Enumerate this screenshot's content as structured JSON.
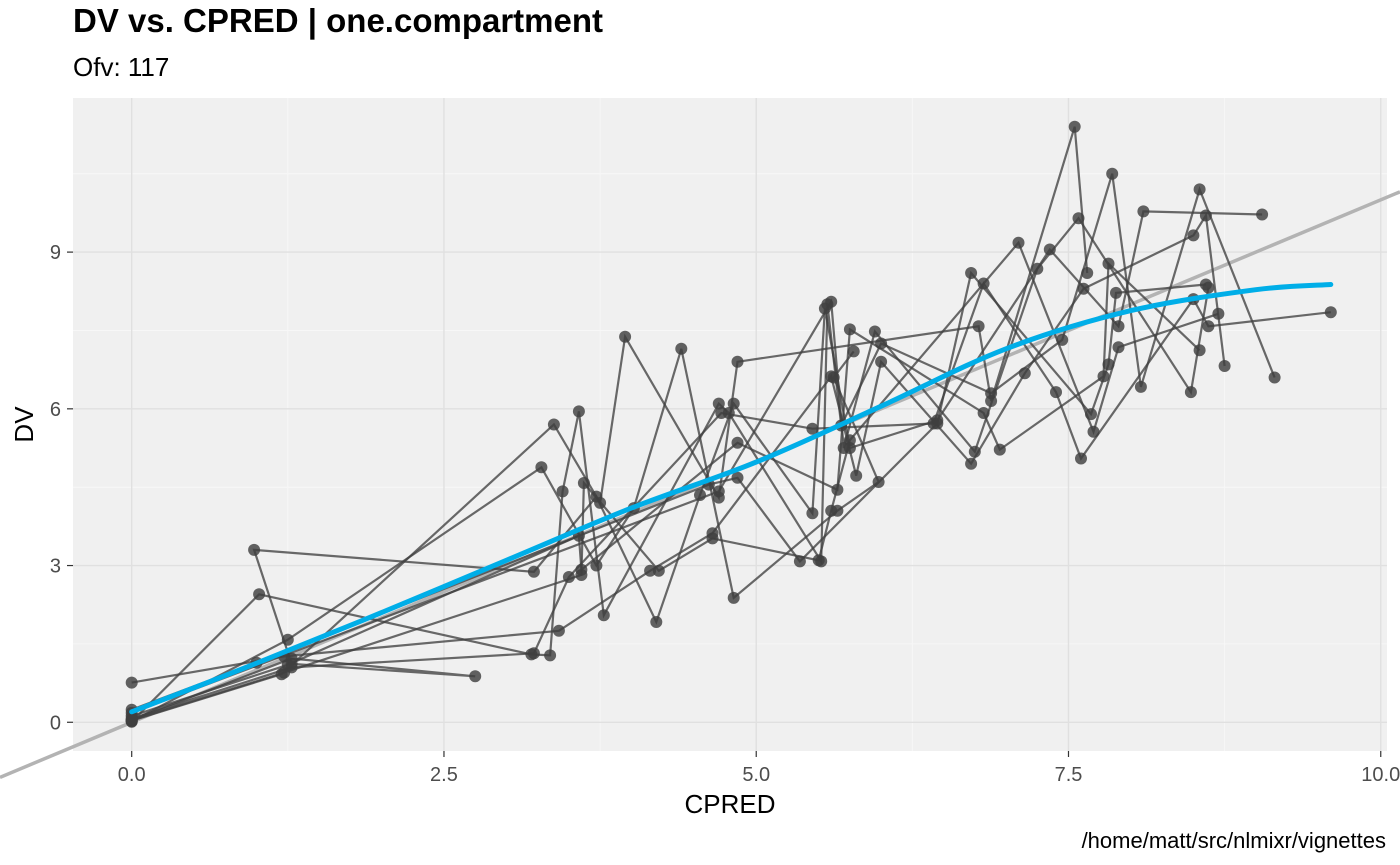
{
  "chart_data": {
    "type": "line",
    "title": "DV vs. CPRED | one.compartment",
    "subtitle": "Ofv: 117",
    "caption": "/home/matt/src/nlmixr/vignettes",
    "xlabel": "CPRED",
    "ylabel": "DV",
    "xlim": [
      -0.47,
      10.05
    ],
    "ylim": [
      -0.55,
      11.95
    ],
    "x_ticks": [
      0.0,
      2.5,
      5.0,
      7.5,
      10.0
    ],
    "x_tick_labels": [
      "0.0",
      "2.5",
      "5.0",
      "7.5",
      "10.0"
    ],
    "y_ticks": [
      0,
      3,
      6,
      9
    ],
    "y_tick_labels": [
      "0",
      "3",
      "6",
      "9"
    ],
    "grid": true,
    "panel_background": "#f0f0f0",
    "grid_color": "#e0e0e0",
    "colors": {
      "observations": "#404040",
      "identity_line": "#b3b3b3",
      "smooth": "#00aee8"
    },
    "series": [
      {
        "points": [
          [
            0,
            0.02
          ],
          [
            1.25,
            1.58
          ],
          [
            3.28,
            4.88
          ],
          [
            3.72,
            3.0
          ],
          [
            4.02,
            4.1
          ],
          [
            4.4,
            7.15
          ],
          [
            4.82,
            2.38
          ],
          [
            5.65,
            4.05
          ],
          [
            5.98,
            4.6
          ],
          [
            5.62,
            6.6
          ],
          [
            5.78,
            7.1
          ]
        ]
      },
      {
        "points": [
          [
            0,
            0.03
          ],
          [
            1.2,
            0.92
          ],
          [
            3.38,
            5.7
          ],
          [
            3.75,
            4.2
          ],
          [
            3.95,
            7.38
          ],
          [
            4.7,
            4.3
          ],
          [
            4.85,
            6.9
          ],
          [
            6.78,
            7.58
          ],
          [
            6.88,
            6.15
          ],
          [
            7.55,
            11.4
          ],
          [
            7.65,
            8.6
          ]
        ]
      },
      {
        "points": [
          [
            0,
            0.01
          ],
          [
            1.02,
            2.45
          ],
          [
            3.2,
            1.3
          ],
          [
            3.35,
            1.28
          ],
          [
            3.45,
            4.42
          ],
          [
            3.58,
            5.95
          ],
          [
            3.78,
            2.05
          ],
          [
            4.7,
            6.1
          ],
          [
            4.78,
            5.92
          ],
          [
            5.52,
            3.08
          ],
          [
            5.57,
            8.0
          ],
          [
            5.68,
            5.68
          ],
          [
            6.0,
            7.25
          ],
          [
            6.88,
            6.3
          ],
          [
            7.45,
            7.32
          ],
          [
            7.85,
            10.5
          ],
          [
            8.08,
            6.42
          ],
          [
            8.55,
            10.2
          ],
          [
            9.15,
            6.6
          ]
        ]
      },
      {
        "points": [
          [
            0,
            0.04
          ],
          [
            1.22,
            0.95
          ],
          [
            3.6,
            2.82
          ],
          [
            3.62,
            4.58
          ],
          [
            4.22,
            2.9
          ],
          [
            4.65,
            3.52
          ],
          [
            5.5,
            3.1
          ],
          [
            5.6,
            4.05
          ],
          [
            5.75,
            5.4
          ],
          [
            7.1,
            9.18
          ],
          [
            7.7,
            5.56
          ],
          [
            7.9,
            7.18
          ],
          [
            8.7,
            7.82
          ]
        ]
      },
      {
        "points": [
          [
            0,
            0.05
          ],
          [
            1.28,
            1.22
          ],
          [
            2.75,
            0.88
          ],
          [
            1.28,
            1.12
          ],
          [
            0.98,
            3.3
          ],
          [
            3.22,
            2.88
          ],
          [
            3.72,
            4.32
          ],
          [
            4.2,
            1.92
          ],
          [
            4.55,
            4.35
          ],
          [
            4.82,
            6.1
          ],
          [
            5.45,
            4.0
          ],
          [
            5.55,
            7.92
          ],
          [
            5.75,
            5.25
          ],
          [
            6.45,
            5.78
          ],
          [
            7.35,
            9.05
          ],
          [
            7.9,
            7.58
          ],
          [
            8.1,
            9.78
          ],
          [
            9.05,
            9.72
          ]
        ]
      },
      {
        "points": [
          [
            0,
            0.07
          ],
          [
            1.28,
            1.05
          ],
          [
            3.22,
            1.32
          ],
          [
            3.5,
            2.78
          ],
          [
            4.72,
            5.92
          ],
          [
            5.45,
            5.62
          ],
          [
            6.42,
            5.72
          ],
          [
            6.82,
            8.4
          ],
          [
            7.4,
            6.32
          ],
          [
            7.6,
            5.05
          ],
          [
            8.5,
            8.1
          ],
          [
            8.62,
            7.58
          ],
          [
            9.6,
            7.85
          ]
        ]
      },
      {
        "points": [
          [
            0,
            0.76
          ],
          [
            1.22,
            1.26
          ],
          [
            3.42,
            1.75
          ],
          [
            4.15,
            2.9
          ],
          [
            4.65,
            3.62
          ],
          [
            5.6,
            6.62
          ],
          [
            5.8,
            4.72
          ],
          [
            6.0,
            6.9
          ],
          [
            6.72,
            4.95
          ],
          [
            7.15,
            6.68
          ],
          [
            7.62,
            8.3
          ],
          [
            8.5,
            9.32
          ],
          [
            8.6,
            9.7
          ],
          [
            8.75,
            6.82
          ]
        ]
      },
      {
        "points": [
          [
            0,
            0.12
          ],
          [
            1.25,
            1.1
          ],
          [
            3.58,
            3.57
          ],
          [
            3.6,
            2.92
          ],
          [
            4.85,
            5.35
          ],
          [
            5.65,
            4.45
          ],
          [
            5.75,
            7.52
          ],
          [
            6.82,
            5.92
          ],
          [
            6.95,
            5.22
          ],
          [
            7.78,
            6.62
          ],
          [
            7.82,
            8.78
          ],
          [
            8.55,
            7.12
          ]
        ]
      },
      {
        "points": [
          [
            0,
            0.24
          ],
          [
            1.0,
            1.14
          ],
          [
            4.62,
            4.55
          ],
          [
            4.85,
            4.68
          ],
          [
            5.35,
            3.08
          ],
          [
            6.45,
            5.72
          ],
          [
            6.72,
            8.6
          ],
          [
            7.68,
            5.9
          ],
          [
            7.82,
            6.85
          ],
          [
            7.88,
            8.22
          ],
          [
            8.6,
            8.38
          ]
        ]
      },
      {
        "points": [
          [
            0,
            0.18
          ],
          [
            4.7,
            4.42
          ],
          [
            5.6,
            8.05
          ],
          [
            5.7,
            5.25
          ],
          [
            5.95,
            7.48
          ],
          [
            6.75,
            5.18
          ],
          [
            7.25,
            8.68
          ],
          [
            7.58,
            9.65
          ],
          [
            8.48,
            6.32
          ],
          [
            8.62,
            8.32
          ]
        ]
      }
    ],
    "identity_line": {
      "x": [
        -0.47,
        10.05
      ],
      "y": [
        -0.47,
        10.05
      ]
    },
    "smooth_line": {
      "x": [
        0,
        1,
        2,
        3,
        4,
        5,
        6,
        7,
        8,
        9,
        9.6
      ],
      "y": [
        0.2,
        1.13,
        2.1,
        3.1,
        4.1,
        4.98,
        6.05,
        7.15,
        7.88,
        8.28,
        8.38
      ]
    }
  }
}
